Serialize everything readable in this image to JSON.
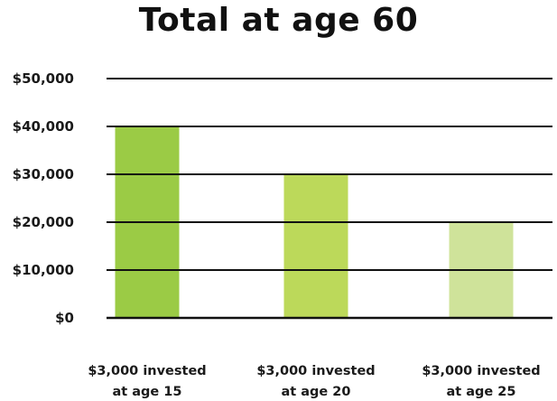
{
  "chart_data": {
    "type": "bar",
    "title": "Total at age 60",
    "xlabel": "",
    "ylabel": "",
    "categories": [
      [
        "$3,000 invested",
        "at age 15"
      ],
      [
        "$3,000 invested",
        "at age 20"
      ],
      [
        "$3,000 invested",
        "at age 25"
      ]
    ],
    "values": [
      40000,
      30000,
      20000
    ],
    "ylim": [
      0,
      50000
    ],
    "yticks": [
      {
        "value": 0,
        "label": "$0"
      },
      {
        "value": 10000,
        "label": "$10,000"
      },
      {
        "value": 20000,
        "label": "$20,000"
      },
      {
        "value": 30000,
        "label": "$30,000"
      },
      {
        "value": 40000,
        "label": "$40,000"
      },
      {
        "value": 50000,
        "label": "$50,000"
      }
    ],
    "colors": [
      "#9bcb45",
      "#bcd95a",
      "#cfe39a"
    ],
    "grid": true,
    "legend": "none"
  }
}
